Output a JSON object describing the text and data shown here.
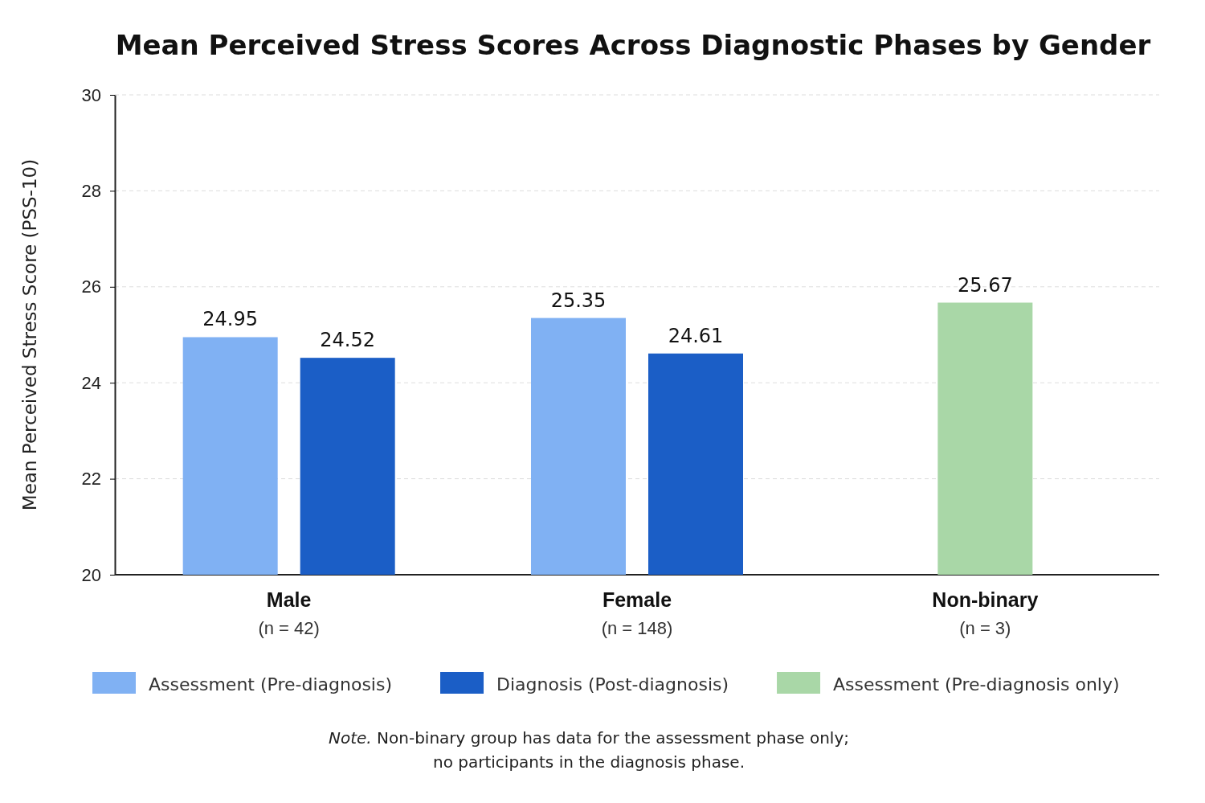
{
  "chart_data": {
    "type": "bar",
    "title": "Mean Perceived Stress Scores Across Diagnostic Phases by Gender",
    "ylabel": "Mean Perceived Stress Score (PSS-10)",
    "categories": [
      "Male\n(n = 42)",
      "Female\n(n = 148)",
      "Non-binary\n(n = 3)"
    ],
    "series": [
      {
        "name": "Assessment (Pre-diagnosis)",
        "color": "#80b1f3",
        "values": [
          24.95,
          25.35,
          null
        ]
      },
      {
        "name": "Diagnosis (Post-diagnosis)",
        "color": "#1b5ec6",
        "values": [
          24.52,
          24.61,
          null
        ]
      },
      {
        "name": "Assessment (Pre-diagnosis only)",
        "color": "#a9d7a7",
        "values": [
          null,
          null,
          25.67
        ]
      }
    ],
    "ylim": [
      20,
      30
    ],
    "yticks": [
      20,
      22,
      24,
      26,
      28,
      30
    ],
    "grid": "y",
    "legend": "bottom",
    "data_labels": true,
    "annotations": [
      "Note. Non-binary group has data for the assessment phase only;\nno participants in the diagnosis phase."
    ]
  }
}
